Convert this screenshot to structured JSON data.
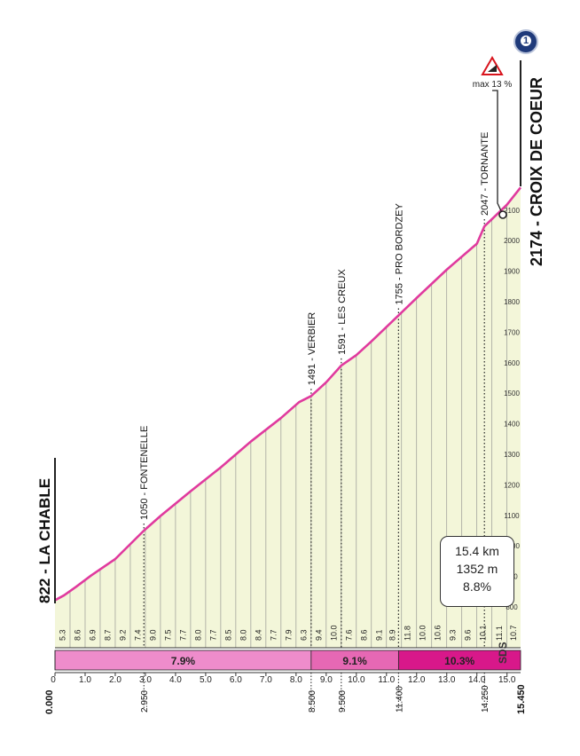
{
  "stage_badge": {
    "icon": "stage-badge-icon",
    "label": "1"
  },
  "start_name": "822 - LA CHABLE",
  "finish_name": "2174 - CROIX DE COEUR",
  "max_gradient": {
    "label": "max 13 %",
    "icon": "steep-gradient-warning-icon"
  },
  "stats": {
    "distance": "15.4 km",
    "elevation": "1352 m",
    "gradient": "8.8%"
  },
  "sds_logo": "SDS",
  "colors": {
    "fill": "#f3f6d9",
    "profile_line": "#e03a9e",
    "seg1": "#ee8ccb",
    "seg2": "#e668b4",
    "seg3": "#d8188a"
  },
  "chart_data": {
    "type": "area",
    "title": "",
    "xlabel": "",
    "ylabel": "",
    "xlim": [
      0,
      15.45
    ],
    "ylim": [
      800,
      2174
    ],
    "x_ticks": [
      "0",
      "1.0",
      "2.0",
      "3.0",
      "4.0",
      "5.0",
      "6.0",
      "7.0",
      "8.0",
      "9.0",
      "10.0",
      "11.0",
      "12.0",
      "13.0",
      "14.0",
      "15.0"
    ],
    "y_ticks": [
      "800",
      "900",
      "1000",
      "1100",
      "1200",
      "1300",
      "1400",
      "1500",
      "1600",
      "1700",
      "1800",
      "1900",
      "2000",
      "2100"
    ],
    "profile": {
      "x": [
        0,
        0.3,
        0.7,
        1.2,
        2.0,
        2.95,
        3.5,
        4.5,
        5.5,
        6.5,
        7.5,
        8.1,
        8.5,
        9.0,
        9.5,
        10.0,
        10.5,
        11.4,
        12.0,
        13.0,
        14.0,
        14.25,
        14.6,
        15.0,
        15.45
      ],
      "y": [
        822,
        838,
        866,
        903,
        957,
        1050,
        1098,
        1179,
        1257,
        1342,
        1419,
        1471,
        1491,
        1536,
        1591,
        1625,
        1670,
        1755,
        1812,
        1905,
        1990,
        2047,
        2080,
        2118,
        2174
      ]
    },
    "km_gradients": {
      "labels": [
        "5.3",
        "8.6",
        "6.9",
        "8.7",
        "9.2",
        "7.4",
        "9.0",
        "7.5",
        "7.7",
        "8.0",
        "7.7",
        "8.5",
        "8.0",
        "8.4",
        "7.7",
        "7.9",
        "6.3",
        "9.4",
        "10.0",
        "7.6",
        "8.6",
        "9.1",
        "8.9",
        "11.8",
        "10.0",
        "10.6",
        "9.3",
        "9.6",
        "10.1",
        "11.1",
        "10.7"
      ],
      "x": [
        0.25,
        0.75,
        1.25,
        1.75,
        2.25,
        2.75,
        3.25,
        3.75,
        4.25,
        4.75,
        5.25,
        5.75,
        6.25,
        6.75,
        7.25,
        7.75,
        8.25,
        8.75,
        9.25,
        9.75,
        10.25,
        10.75,
        11.2,
        11.7,
        12.2,
        12.7,
        13.2,
        13.7,
        14.2,
        14.75,
        15.22
      ]
    },
    "waypoints": [
      {
        "name": "1050 - FONTENELLE",
        "x": 2.95,
        "distance": "2.950"
      },
      {
        "name": "1491 - VERBIER",
        "x": 8.5,
        "distance": "8.500"
      },
      {
        "name": "1591 - LES CREUX",
        "x": 9.5,
        "distance": "9.500"
      },
      {
        "name": "1755 - PRO BORDZEY",
        "x": 11.4,
        "distance": "11.400"
      },
      {
        "name": "2047 - TORNANTE",
        "x": 14.25,
        "distance": "14.250"
      }
    ],
    "start_distance": "0.000",
    "finish_distance": "15.450",
    "segments": [
      {
        "start": 0,
        "end": 8.5,
        "label": "7.9%",
        "color": "#ee8ccb"
      },
      {
        "start": 8.5,
        "end": 11.4,
        "label": "9.1%",
        "color": "#e668b4"
      },
      {
        "start": 11.4,
        "end": 15.45,
        "label": "10.3%",
        "color": "#d8188a"
      }
    ]
  }
}
